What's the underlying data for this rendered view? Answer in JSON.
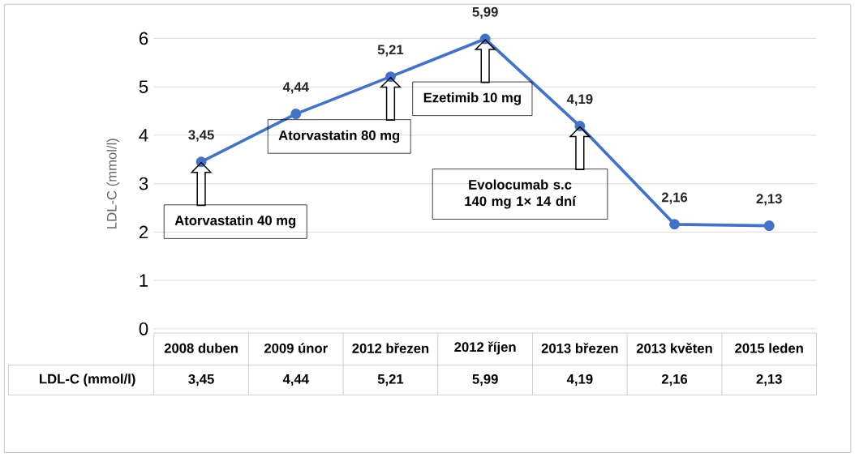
{
  "chart_data": {
    "type": "line",
    "ylabel": "LDL-C (mmol/l)",
    "categories": [
      "2008 duben",
      "2009 únor",
      "2012 březen",
      "2012 říjen",
      "2013 březen",
      "2013 květen",
      "2015 leden"
    ],
    "series": [
      {
        "name": "LDL-C (mmol/l)",
        "color": "#4472c4",
        "values": [
          3.45,
          4.44,
          5.21,
          5.99,
          4.19,
          2.16,
          2.13
        ],
        "value_labels": [
          "3,45",
          "4,44",
          "5,21",
          "5,99",
          "4,19",
          "2,16",
          "2,13"
        ]
      }
    ],
    "ylim": [
      0,
      6
    ],
    "yticks": [
      0,
      1,
      2,
      3,
      4,
      5,
      6
    ],
    "grid": "y",
    "marker": "circle",
    "line_style": "solid",
    "annotations": [
      "Atorvastatin 40 mg",
      "Atorvastatin 80 mg",
      "Ezetimib 10 mg",
      "Evolocumab s.c 140 mg 1× 14 dní"
    ]
  }
}
